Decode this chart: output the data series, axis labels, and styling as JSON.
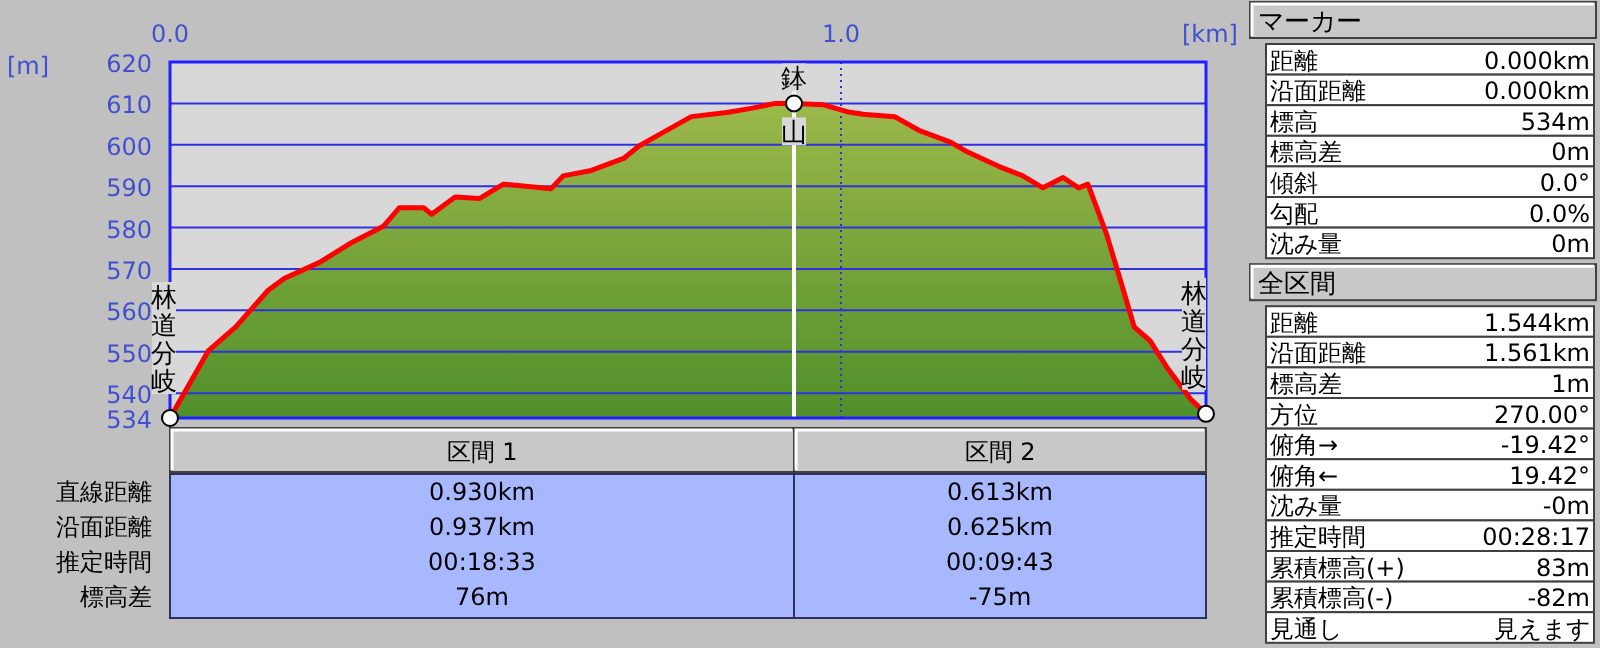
{
  "chart_data": [
    {
      "type": "area",
      "xlabel": "[km]",
      "ylabel": "[m]",
      "xlim": [
        0,
        1.544
      ],
      "ylim": [
        534,
        620
      ],
      "xticks": [
        {
          "value": 0,
          "label": "0.0"
        },
        {
          "value": 1,
          "label": "1.0"
        }
      ],
      "yticks": [
        534,
        540,
        550,
        560,
        570,
        580,
        590,
        600,
        610,
        620
      ],
      "grid": "y",
      "series": [
        {
          "color": "#ff0000",
          "x": [
            0,
            0.057,
            0.098,
            0.146,
            0.17,
            0.223,
            0.271,
            0.318,
            0.342,
            0.378,
            0.39,
            0.425,
            0.461,
            0.497,
            0.568,
            0.586,
            0.628,
            0.676,
            0.699,
            0.735,
            0.777,
            0.83,
            0.866,
            0.902,
            0.93,
            0.973,
            1.009,
            1.033,
            1.08,
            1.116,
            1.164,
            1.188,
            1.235,
            1.271,
            1.301,
            1.331,
            1.354,
            1.368,
            1.396,
            1.414,
            1.437,
            1.461,
            1.485,
            1.521,
            1.544
          ],
          "values": [
            534,
            550.2,
            556,
            564.8,
            567.7,
            571.6,
            576.4,
            580.3,
            584.8,
            584.8,
            583.2,
            587.4,
            587,
            590.5,
            589.4,
            592.5,
            593.8,
            596.7,
            599.7,
            603,
            606.8,
            607.8,
            608.8,
            610,
            610,
            609.7,
            608,
            607.4,
            606.8,
            603.5,
            600.6,
            598.3,
            594.8,
            592.5,
            589.6,
            592.1,
            589.6,
            590.5,
            578.3,
            568.6,
            556,
            552.6,
            546.4,
            538.6,
            535
          ]
        }
      ],
      "ref_lines": [
        {
          "axis": "x",
          "value": 1,
          "color": "#3030e0",
          "line_style": "dotted"
        },
        {
          "axis": "x",
          "value": 0.93,
          "color": "#ffffff"
        }
      ],
      "annotations": [
        {
          "text": "林道分岐",
          "x": 0,
          "y": 534
        },
        {
          "text": "鉢山",
          "x": 0.93,
          "y": 610
        },
        {
          "text": "林道分岐",
          "x": 1.544,
          "y": 535
        }
      ]
    },
    {
      "type": "other",
      "categories": [
        "区間 1",
        "区間 2"
      ],
      "y_categories": [
        "直線距離",
        "沿面距離",
        "推定時間",
        "標高差"
      ],
      "cell_labels": [
        [
          "0.930km",
          "0.613km"
        ],
        [
          "0.937km",
          "0.625km"
        ],
        [
          "00:18:33",
          "00:09:43"
        ],
        [
          "76m",
          "-75m"
        ]
      ]
    },
    {
      "type": "other",
      "title": "マーカー",
      "y_categories": [
        "距離",
        "沿面距離",
        "標高",
        "標高差",
        "傾斜",
        "勾配",
        "沈み量"
      ],
      "cell_labels": [
        [
          "0.000km"
        ],
        [
          "0.000km"
        ],
        [
          "534m"
        ],
        [
          "0m"
        ],
        [
          "0.0°"
        ],
        [
          "0.0%"
        ],
        [
          "0m"
        ]
      ]
    },
    {
      "type": "other",
      "title": "全区間",
      "y_categories": [
        "距離",
        "沿面距離",
        "標高差",
        "方位",
        "俯角→",
        "俯角←",
        "沈み量",
        "推定時間",
        "累積標高(+)",
        "累積標高(-)",
        "見通し"
      ],
      "cell_labels": [
        [
          "1.544km"
        ],
        [
          "1.561km"
        ],
        [
          "1m"
        ],
        [
          "270.00°"
        ],
        [
          "-19.42°"
        ],
        [
          "19.42°"
        ],
        [
          "-0m"
        ],
        [
          "00:28:17"
        ],
        [
          "83m"
        ],
        [
          "-82m"
        ],
        [
          "見えます"
        ]
      ]
    }
  ]
}
